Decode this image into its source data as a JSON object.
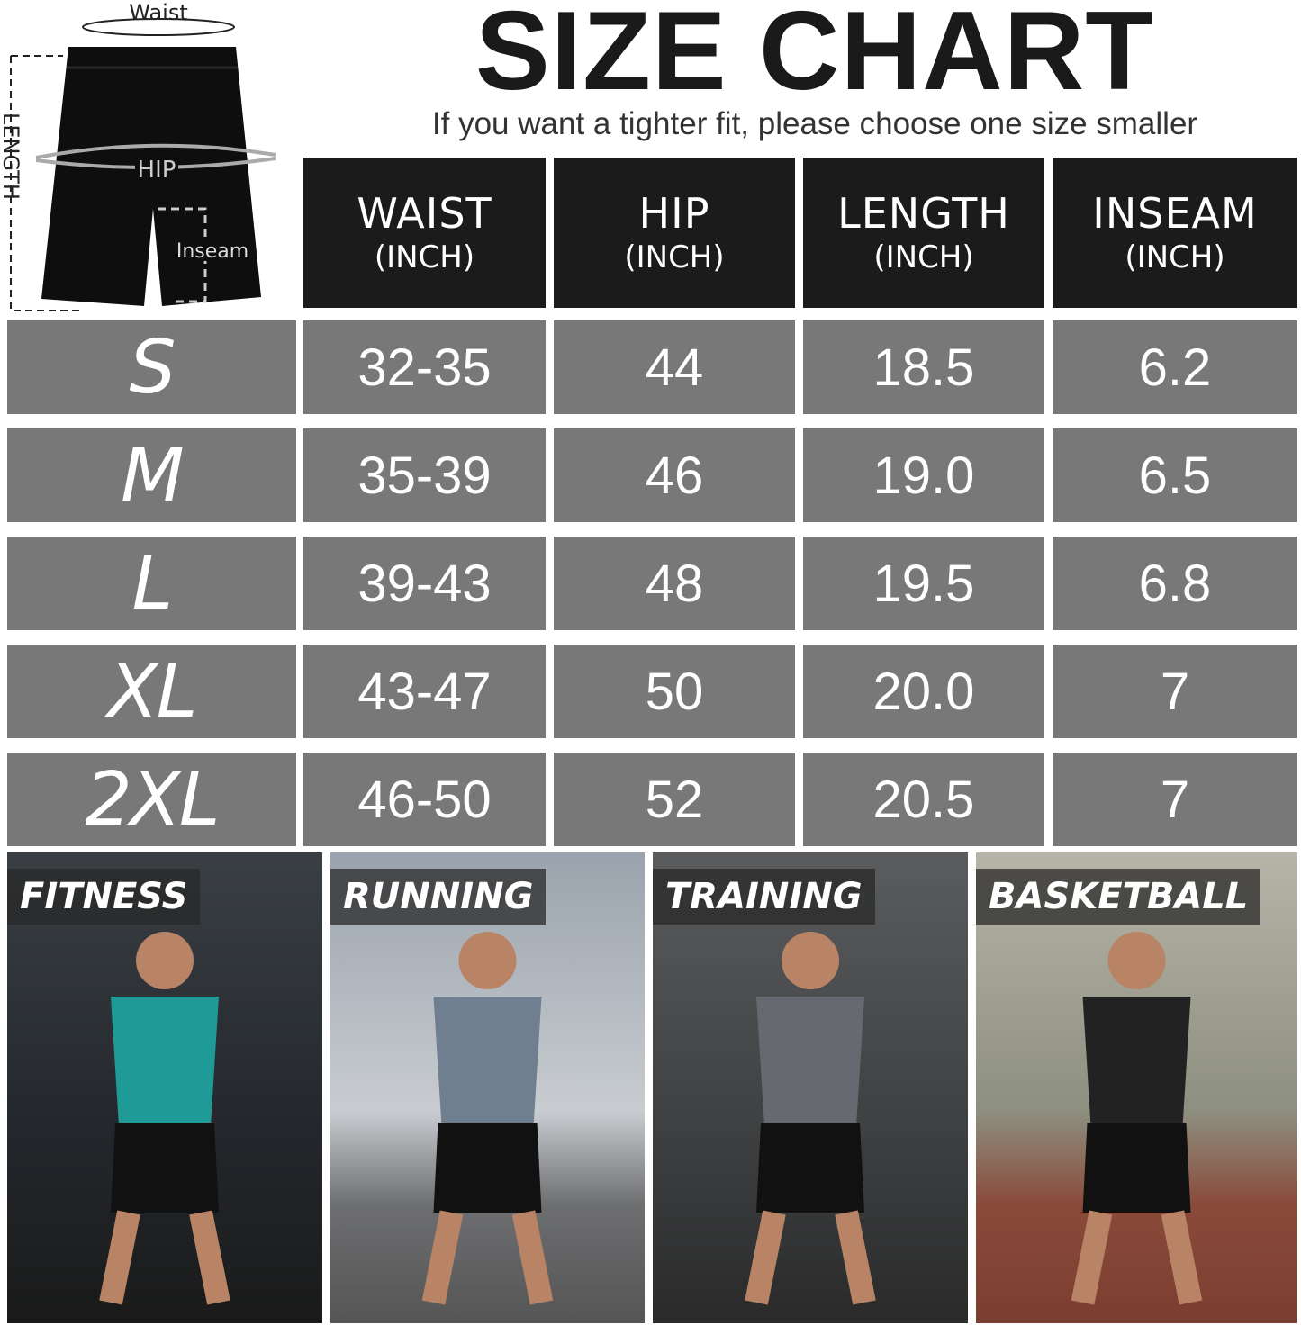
{
  "title": "SIZE CHART",
  "subtitle": "If you want a tighter fit, please choose one size smaller",
  "diagram": {
    "waist": "Waist",
    "hip": "HIP",
    "length": "LENGTH",
    "inseam": "Inseam"
  },
  "headers": [
    {
      "label": "WAIST",
      "unit": "(INCH)"
    },
    {
      "label": "HIP",
      "unit": "(INCH)"
    },
    {
      "label": "LENGTH",
      "unit": "(INCH)"
    },
    {
      "label": "INSEAM",
      "unit": "(INCH)"
    }
  ],
  "rows": [
    {
      "size": "S",
      "values": [
        "32-35",
        "44",
        "18.5",
        "6.2"
      ]
    },
    {
      "size": "M",
      "values": [
        "35-39",
        "46",
        "19.0",
        "6.5"
      ]
    },
    {
      "size": "L",
      "values": [
        "39-43",
        "48",
        "19.5",
        "6.8"
      ]
    },
    {
      "size": "XL",
      "values": [
        "43-47",
        "50",
        "20.0",
        "7"
      ]
    },
    {
      "size": "2XL",
      "values": [
        "46-50",
        "52",
        "20.5",
        "7"
      ]
    }
  ],
  "activities": [
    "FITNESS",
    "RUNNING",
    "TRAINING",
    "BASKETBALL"
  ],
  "colors": {
    "header": "#1b1b1b",
    "cell": "#787878",
    "text": "#ffffff"
  }
}
